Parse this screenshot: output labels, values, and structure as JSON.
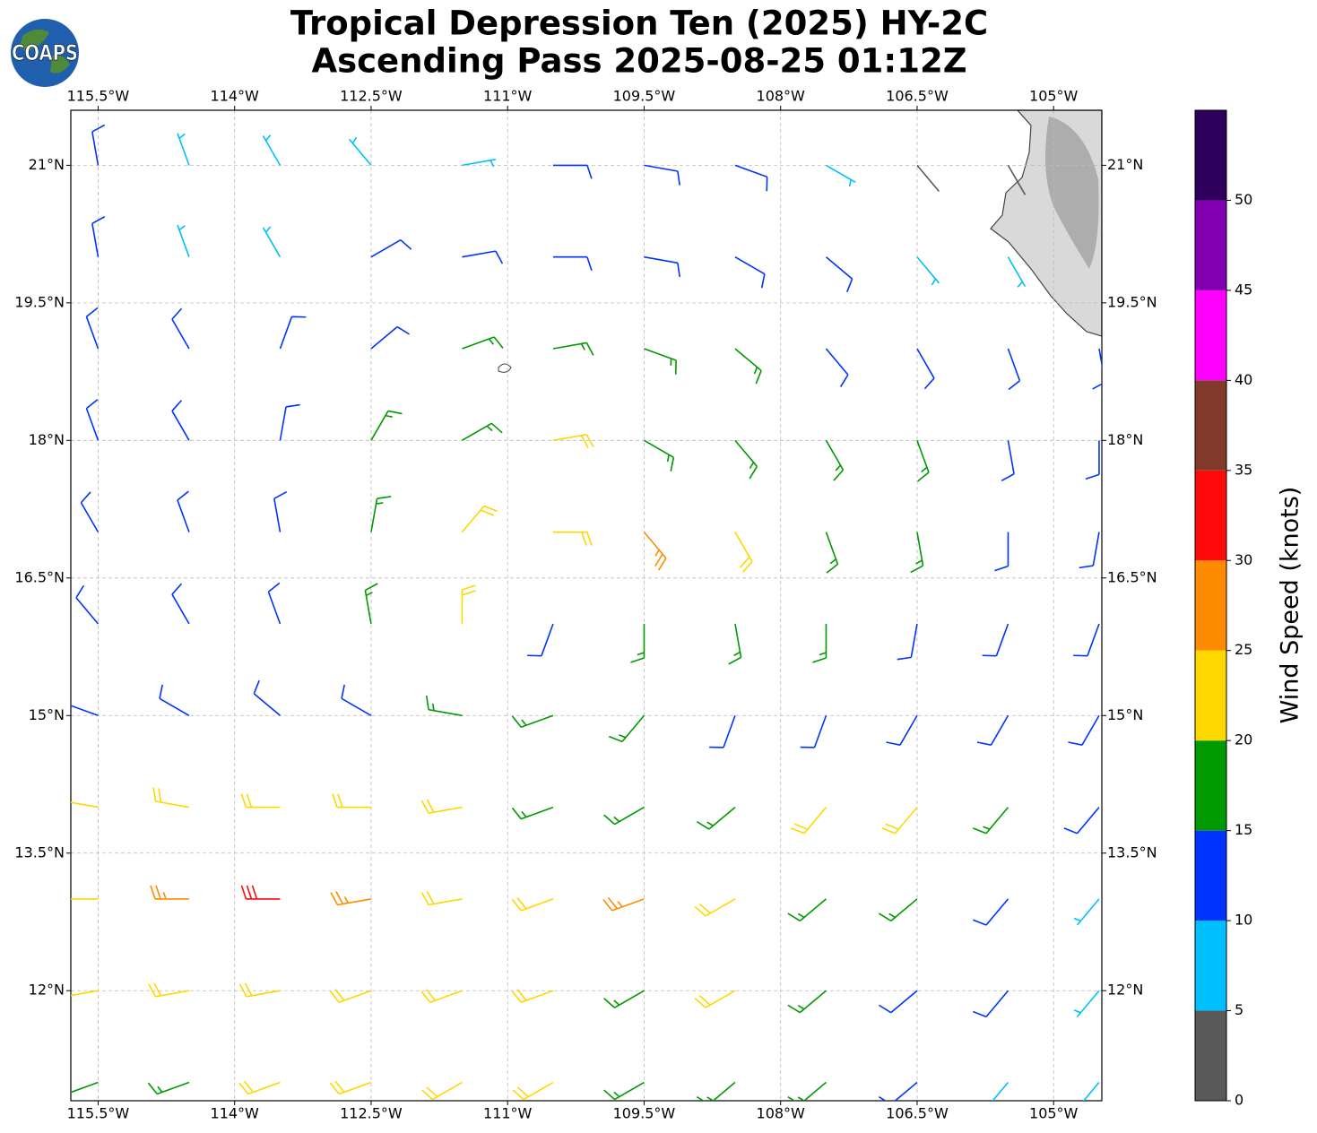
{
  "chart_data": {
    "type": "wind_barbs",
    "logo": "COAPS",
    "title": "Tropical Depression Ten (2025) HY-2C",
    "subtitle": "Ascending Pass 2025-08-25 01:12Z",
    "lon": [
      -115.5,
      -114.5,
      -113.5,
      -112.5,
      -111.5,
      -110.5,
      -109.5,
      -108.5,
      -107.5,
      -106.5,
      -105.5,
      -104.5
    ],
    "lat": [
      21,
      20,
      19,
      18,
      17,
      16,
      15,
      14,
      13,
      12,
      11
    ],
    "speed": [
      [
        10,
        8,
        8,
        8,
        8,
        12,
        12,
        12,
        8,
        3,
        3,
        null
      ],
      [
        12,
        8,
        8,
        12,
        12,
        12,
        12,
        13,
        12,
        8,
        8,
        null
      ],
      [
        12,
        12,
        12,
        13,
        17,
        17,
        17,
        17,
        14,
        12,
        12,
        12
      ],
      [
        12,
        12,
        13,
        17,
        18,
        22,
        17,
        17,
        17,
        17,
        14,
        12
      ],
      [
        12,
        12,
        13,
        17,
        22,
        23,
        26,
        22,
        17,
        17,
        13,
        12
      ],
      [
        12,
        10,
        13,
        17,
        22,
        14,
        17,
        18,
        17,
        14,
        12,
        12
      ],
      [
        13,
        14,
        13,
        14,
        17,
        18,
        17,
        13,
        13,
        13,
        12,
        12
      ],
      [
        22,
        22,
        23,
        22,
        22,
        18,
        17,
        18,
        22,
        22,
        18,
        13
      ],
      [
        23,
        27,
        32,
        27,
        22,
        23,
        27,
        23,
        18,
        18,
        13,
        8
      ],
      [
        22,
        22,
        22,
        23,
        23,
        23,
        18,
        22,
        18,
        13,
        12,
        8
      ],
      [
        17,
        18,
        22,
        22,
        22,
        22,
        18,
        18,
        18,
        13,
        8,
        8
      ]
    ],
    "direction": [
      [
        350,
        340,
        330,
        320,
        80,
        90,
        100,
        110,
        120,
        140,
        150,
        null
      ],
      [
        350,
        340,
        330,
        60,
        80,
        90,
        100,
        120,
        130,
        140,
        150,
        null
      ],
      [
        340,
        330,
        20,
        50,
        70,
        80,
        110,
        130,
        140,
        150,
        160,
        170
      ],
      [
        340,
        330,
        10,
        30,
        60,
        80,
        120,
        140,
        150,
        160,
        170,
        180
      ],
      [
        330,
        340,
        350,
        10,
        40,
        90,
        140,
        150,
        160,
        170,
        180,
        190
      ],
      [
        320,
        330,
        340,
        350,
        0,
        200,
        180,
        170,
        180,
        190,
        200,
        200
      ],
      [
        290,
        300,
        310,
        300,
        280,
        250,
        220,
        200,
        200,
        210,
        210,
        210
      ],
      [
        280,
        280,
        270,
        270,
        260,
        250,
        240,
        230,
        220,
        220,
        220,
        220
      ],
      [
        270,
        270,
        270,
        260,
        260,
        250,
        250,
        240,
        230,
        230,
        220,
        220
      ],
      [
        260,
        260,
        260,
        250,
        250,
        250,
        240,
        240,
        230,
        230,
        220,
        220
      ],
      [
        250,
        250,
        250,
        250,
        240,
        240,
        240,
        230,
        230,
        230,
        220,
        220
      ]
    ],
    "xlim": [
      -115.8,
      -104.47
    ],
    "ylim": [
      10.8,
      21.6
    ],
    "xticks": [
      {
        "value": -115.5,
        "label": "115.5°W"
      },
      {
        "value": -114,
        "label": "114°W"
      },
      {
        "value": -112.5,
        "label": "112.5°W"
      },
      {
        "value": -111,
        "label": "111°W"
      },
      {
        "value": -109.5,
        "label": "109.5°W"
      },
      {
        "value": -108,
        "label": "108°W"
      },
      {
        "value": -106.5,
        "label": "106.5°W"
      },
      {
        "value": -105,
        "label": "105°W"
      }
    ],
    "yticks": [
      {
        "value": 12,
        "label": "12°N"
      },
      {
        "value": 13.5,
        "label": "13.5°N"
      },
      {
        "value": 15,
        "label": "15°N"
      },
      {
        "value": 16.5,
        "label": "16.5°N"
      },
      {
        "value": 18,
        "label": "18°N"
      },
      {
        "value": 19.5,
        "label": "19.5°N"
      },
      {
        "value": 21,
        "label": "21°N"
      }
    ],
    "grid": true,
    "colorbar": {
      "label": "Wind Speed (knots)",
      "levels": [
        0,
        5,
        10,
        15,
        20,
        25,
        30,
        35,
        40,
        45,
        50,
        55
      ],
      "colors": [
        "#595959",
        "#00bfff",
        "#0033ff",
        "#009900",
        "#ffd700",
        "#ff8c00",
        "#ff0a0a",
        "#803a2a",
        "#ff00ff",
        "#8000b0",
        "#2e005c"
      ],
      "ticks": [
        0,
        5,
        10,
        15,
        20,
        25,
        30,
        35,
        40,
        45,
        50
      ]
    }
  }
}
